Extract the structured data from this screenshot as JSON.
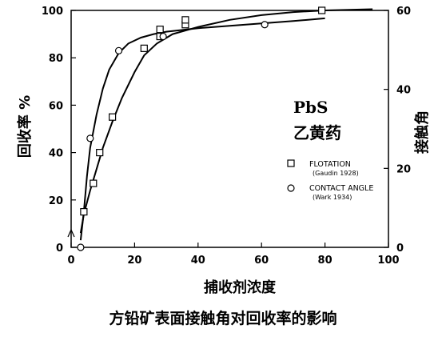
{
  "chart_data": {
    "type": "line",
    "xlabel": "捕收剂浓度",
    "ylabel": "回收率 %",
    "y2label": "接触角",
    "xlim": [
      0,
      100
    ],
    "ylim": [
      0,
      100
    ],
    "y2lim": [
      0,
      60
    ],
    "xticks": [
      "0",
      "20",
      "40",
      "60",
      "80",
      "100"
    ],
    "yticks": [
      "0",
      "20",
      "40",
      "60",
      "80",
      "100"
    ],
    "y2ticks": [
      "0",
      "20",
      "40",
      "60"
    ],
    "annotation": {
      "line1": "PbS",
      "line2": "乙黄药"
    },
    "legend_position": "right-middle",
    "series": [
      {
        "name": "FLOTATION",
        "source": "(Gaudin 1928)",
        "marker": "square",
        "axis": "left",
        "points": [
          [
            4,
            15
          ],
          [
            7,
            27
          ],
          [
            9,
            40
          ],
          [
            13,
            55
          ],
          [
            23,
            84
          ],
          [
            28,
            89
          ],
          [
            28,
            92
          ],
          [
            36,
            94
          ],
          [
            36,
            96
          ],
          [
            79,
            100
          ]
        ],
        "curve": [
          [
            3,
            6
          ],
          [
            4,
            14
          ],
          [
            6,
            24
          ],
          [
            8,
            33
          ],
          [
            10,
            42
          ],
          [
            13,
            53
          ],
          [
            16,
            63
          ],
          [
            20,
            74
          ],
          [
            23,
            81
          ],
          [
            27,
            86
          ],
          [
            32,
            90
          ],
          [
            40,
            93
          ],
          [
            50,
            96
          ],
          [
            60,
            98
          ],
          [
            70,
            99.3
          ],
          [
            80,
            100
          ],
          [
            95,
            100.5
          ]
        ]
      },
      {
        "name": "CONTACT ANGLE",
        "source": "(Wark 1934)",
        "marker": "circle",
        "axis": "right",
        "points": [
          [
            3,
            0
          ],
          [
            6,
            27.6
          ],
          [
            15,
            49.8
          ],
          [
            29,
            53.4
          ],
          [
            61,
            56.4
          ]
        ],
        "curve": [
          [
            3,
            1.8
          ],
          [
            4,
            9
          ],
          [
            5,
            18
          ],
          [
            6,
            25.2
          ],
          [
            8,
            33.6
          ],
          [
            10,
            40.2
          ],
          [
            12,
            45
          ],
          [
            15,
            49.2
          ],
          [
            18,
            51.6
          ],
          [
            22,
            53.1
          ],
          [
            26,
            54
          ],
          [
            30,
            54.6
          ],
          [
            40,
            55.5
          ],
          [
            50,
            56.1
          ],
          [
            60,
            56.7
          ],
          [
            70,
            57.3
          ],
          [
            80,
            58
          ]
        ]
      }
    ]
  },
  "caption": "方铅矿表面接触角对回收率的影响"
}
